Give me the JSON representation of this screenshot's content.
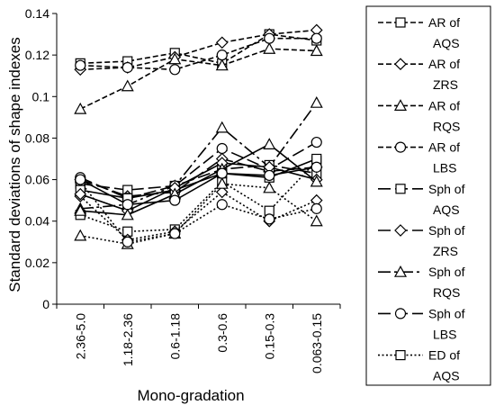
{
  "chart_data": {
    "type": "line",
    "title": "",
    "xlabel": "Mono-gradation",
    "ylabel": "Standard deviations of shape indexes",
    "categories": [
      "2.36-5.0",
      "1.18-2.36",
      "0.6-1.18",
      "0.3-0.6",
      "0.15-0.3",
      "0.063-0.15"
    ],
    "ylim": [
      0,
      0.14
    ],
    "yticks": [
      0,
      0.02,
      0.04,
      0.06,
      0.08,
      0.1,
      0.12,
      0.14
    ],
    "ytick_labels": [
      "0",
      "0.02",
      "0.04",
      "0.06",
      "0.08",
      "0.1",
      "0.12",
      "0.14"
    ],
    "grid": false,
    "legend_position": "right",
    "series": [
      {
        "name": "AR of AQS",
        "legend_lines": [
          "AR of",
          "AQS"
        ],
        "marker": "square",
        "dash": "dashed",
        "values": [
          0.116,
          0.117,
          0.121,
          0.116,
          0.13,
          0.127
        ]
      },
      {
        "name": "AR of ZRS",
        "legend_lines": [
          "AR of",
          "ZRS"
        ],
        "marker": "diamond",
        "dash": "dashed",
        "values": [
          0.113,
          0.114,
          0.119,
          0.126,
          0.13,
          0.132
        ]
      },
      {
        "name": "AR of RQS",
        "legend_lines": [
          "AR of",
          "RQS"
        ],
        "marker": "triangle",
        "dash": "dashed",
        "values": [
          0.094,
          0.105,
          0.118,
          0.115,
          0.123,
          0.122
        ]
      },
      {
        "name": "AR of LBS",
        "legend_lines": [
          "AR of",
          "LBS"
        ],
        "marker": "circle",
        "dash": "dashed",
        "values": [
          0.115,
          0.114,
          0.113,
          0.12,
          0.128,
          0.128
        ]
      },
      {
        "name": "Sph of AQS",
        "legend_lines": [
          "Sph of",
          "AQS"
        ],
        "marker": "square",
        "dash": "longdash",
        "values": [
          0.058,
          0.055,
          0.057,
          0.065,
          0.067,
          0.063
        ]
      },
      {
        "name": "Sph of ZRS",
        "legend_lines": [
          "Sph of",
          "ZRS"
        ],
        "marker": "diamond",
        "dash": "longdash",
        "values": [
          0.06,
          0.052,
          0.054,
          0.07,
          0.064,
          0.066
        ]
      },
      {
        "name": "Sph of RQS",
        "legend_lines": [
          "Sph of",
          "RQS"
        ],
        "marker": "triangle",
        "dash": "dashdot",
        "values": [
          0.046,
          0.048,
          0.057,
          0.085,
          0.066,
          0.097
        ]
      },
      {
        "name": "Sph of LBS",
        "legend_lines": [
          "Sph of",
          "LBS"
        ],
        "marker": "circle",
        "dash": "longdash",
        "values": [
          0.061,
          0.051,
          0.057,
          0.075,
          0.065,
          0.078
        ]
      },
      {
        "name": "ED of AQS",
        "legend_lines": [
          "ED of",
          "AQS"
        ],
        "marker": "square",
        "dash": "dotted",
        "values": [
          0.043,
          0.035,
          0.036,
          0.059,
          0.045,
          0.069
        ]
      },
      {
        "name": "",
        "marker": "diamond",
        "dash": "dotted",
        "values": [
          0.052,
          0.031,
          0.035,
          0.054,
          0.04,
          0.05
        ]
      },
      {
        "name": "",
        "marker": "triangle",
        "dash": "dotted",
        "values": [
          0.033,
          0.029,
          0.034,
          0.058,
          0.056,
          0.04
        ]
      },
      {
        "name": "",
        "marker": "circle",
        "dash": "dotted",
        "values": [
          0.059,
          0.03,
          0.034,
          0.048,
          0.041,
          0.046
        ]
      },
      {
        "name": "",
        "marker": "square",
        "dash": "solid",
        "values": [
          0.055,
          0.051,
          0.055,
          0.063,
          0.061,
          0.07
        ]
      },
      {
        "name": "",
        "marker": "diamond",
        "dash": "solid",
        "values": [
          0.053,
          0.045,
          0.056,
          0.068,
          0.066,
          0.06
        ]
      },
      {
        "name": "",
        "marker": "triangle",
        "dash": "solid",
        "values": [
          0.045,
          0.043,
          0.053,
          0.065,
          0.077,
          0.059
        ]
      },
      {
        "name": "",
        "marker": "circle",
        "dash": "solid",
        "values": [
          0.06,
          0.048,
          0.05,
          0.063,
          0.062,
          0.066
        ]
      }
    ]
  }
}
